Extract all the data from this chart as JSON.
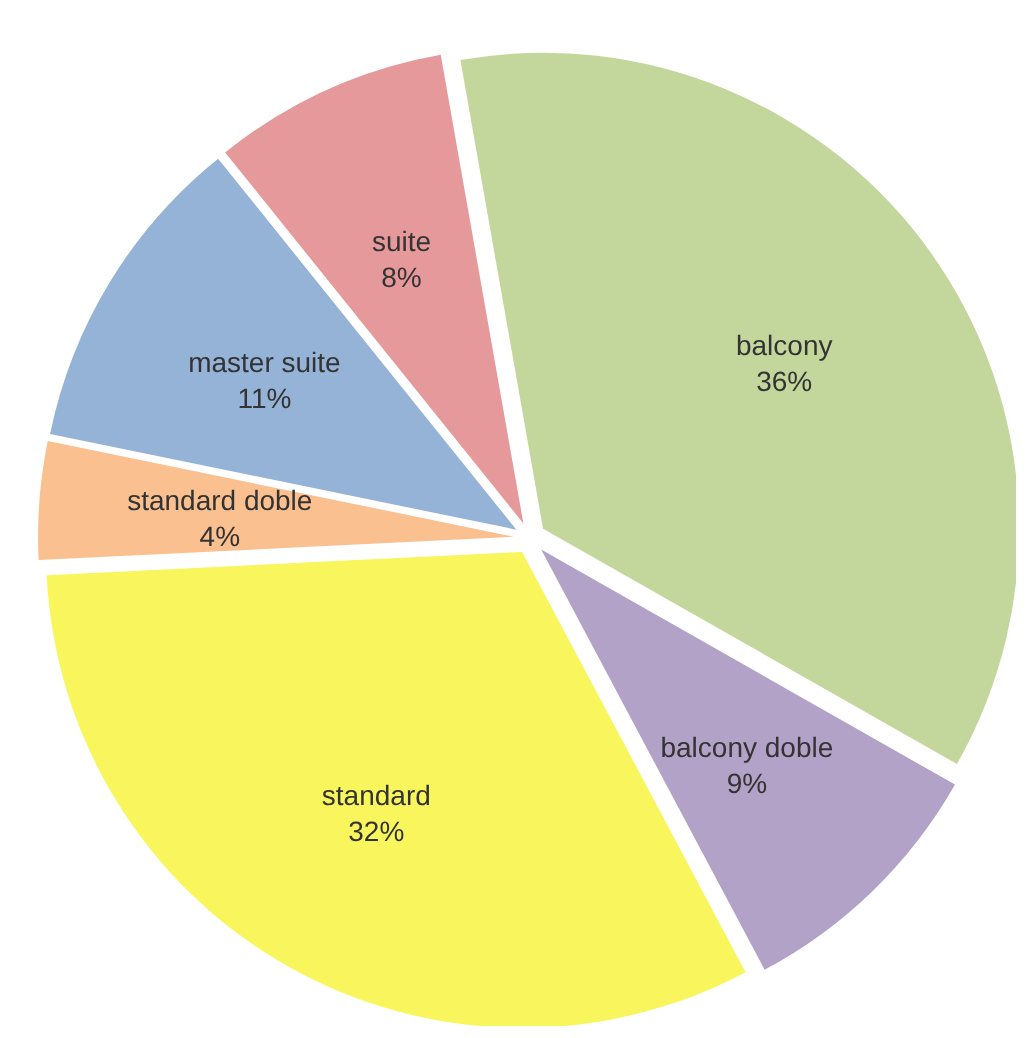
{
  "chart_data": {
    "type": "pie",
    "categories": [
      "balcony",
      "balcony doble",
      "standard",
      "standard doble",
      "master suite",
      "suite"
    ],
    "values": [
      36,
      9,
      32,
      4,
      11,
      8
    ],
    "value_labels": [
      "36%",
      "9%",
      "32%",
      "4%",
      "11%",
      "8%"
    ],
    "colors": [
      "#c3d69b",
      "#b3a2c7",
      "#f8f65c",
      "#fac090",
      "#95b3d7",
      "#e6999a"
    ],
    "legend": false
  }
}
